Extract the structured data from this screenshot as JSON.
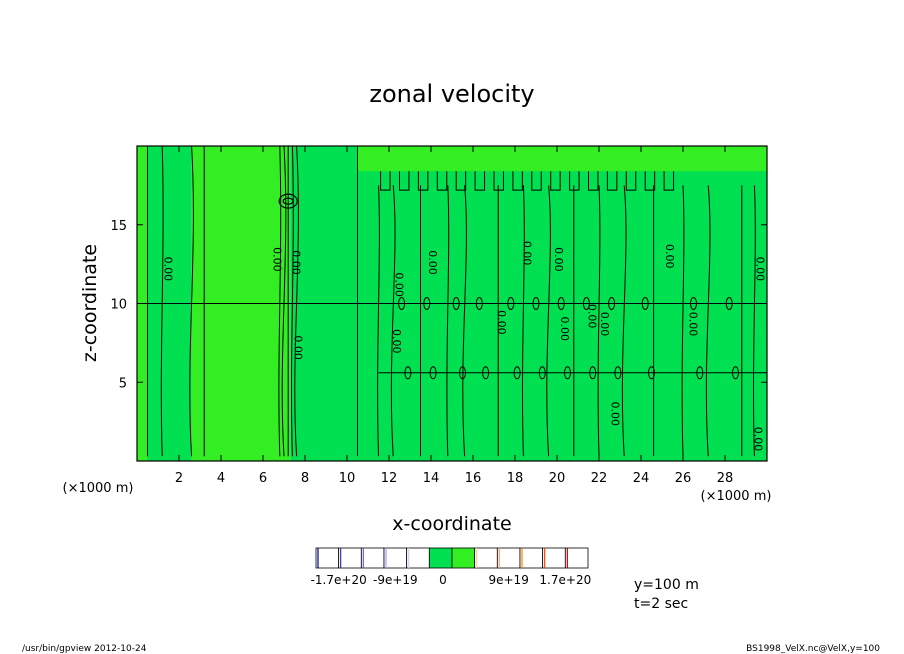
{
  "chart_data": {
    "type": "heatmap",
    "title": "zonal velocity",
    "xlabel": "x-coordinate",
    "ylabel": "z-coordinate",
    "x_unit": "(×1000 m)",
    "z_unit": "(×1000 m)",
    "xlim": [
      0,
      30
    ],
    "zlim": [
      0,
      20
    ],
    "x_ticks": [
      2,
      4,
      6,
      8,
      10,
      12,
      14,
      16,
      18,
      20,
      22,
      24,
      26,
      28
    ],
    "z_ticks": [
      5,
      10,
      15
    ],
    "contour_label": "0.00",
    "contour_lines_z": [
      10,
      5.6
    ],
    "regions": [
      {
        "x0": 0.0,
        "x1": 0.5,
        "z0": 0,
        "z1": 20,
        "level": "light"
      },
      {
        "x0": 0.5,
        "x1": 2.6,
        "z0": 0,
        "z1": 20,
        "level": "mid"
      },
      {
        "x0": 2.6,
        "x1": 7.3,
        "z0": 0,
        "z1": 20,
        "level": "light"
      },
      {
        "x0": 7.3,
        "x1": 10.5,
        "z0": 0,
        "z1": 20,
        "level": "mid"
      },
      {
        "x0": 10.5,
        "x1": 30,
        "z0": 0,
        "z1": 20,
        "level": "mid"
      }
    ],
    "colorbar": {
      "segments": [
        "#ffffff",
        "#ffffff",
        "#ffffff",
        "#ffffff",
        "#ffffff",
        "#00e050",
        "#33ee22",
        "#ffffff",
        "#ffffff",
        "#ffffff",
        "#ffffff",
        "#ffffff"
      ],
      "tick_labels": [
        "-1.7e+20",
        "-9e+19",
        "0",
        "9e+19",
        "1.7e+20"
      ]
    },
    "annotations": [
      "y=100 m",
      "t=2 sec"
    ]
  },
  "footer": {
    "left": "/usr/bin/gpview  2012-10-24",
    "right": "BS1998_VelX.nc@VelX,y=100"
  },
  "colors": {
    "field_light": "#33ee22",
    "field_mid": "#00e050",
    "contour": "#000000"
  }
}
